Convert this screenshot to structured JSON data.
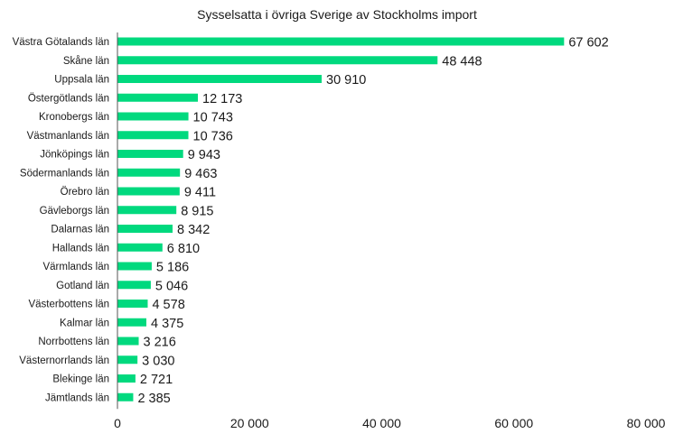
{
  "chart_data": {
    "type": "bar",
    "orientation": "horizontal",
    "title": "Sysselsatta i övriga Sverige av Stockholms import",
    "xlabel": "",
    "ylabel": "",
    "xlim": [
      0,
      80000
    ],
    "x_ticks": [
      0,
      20000,
      40000,
      60000,
      80000
    ],
    "x_tick_labels": [
      "0",
      "20 000",
      "40 000",
      "60 000",
      "80 000"
    ],
    "grid": false,
    "legend": "none",
    "bar_color": "#00d97e",
    "categories": [
      "Västra Götalands län",
      "Skåne län",
      "Uppsala län",
      "Östergötlands län",
      "Kronobergs län",
      "Västmanlands län",
      "Jönköpings län",
      "Södermanlands län",
      "Örebro län",
      "Gävleborgs län",
      "Dalarnas län",
      "Hallands län",
      "Värmlands län",
      "Gotland län",
      "Västerbottens län",
      "Kalmar län",
      "Norrbottens län",
      "Västernorrlands län",
      "Blekinge län",
      "Jämtlands län"
    ],
    "values": [
      67602,
      48448,
      30910,
      12173,
      10743,
      10736,
      9943,
      9463,
      9411,
      8915,
      8342,
      6810,
      5186,
      5046,
      4578,
      4375,
      3216,
      3030,
      2721,
      2385
    ],
    "data_labels": [
      "67 602",
      "48 448",
      "30 910",
      "12 173",
      "10 743",
      "10 736",
      "9 943",
      "9 463",
      "9 411",
      "8 915",
      "8 342",
      "6 810",
      "5 186",
      "5 046",
      "4 578",
      "4 375",
      "3 216",
      "3 030",
      "2 721",
      "2 385"
    ]
  }
}
